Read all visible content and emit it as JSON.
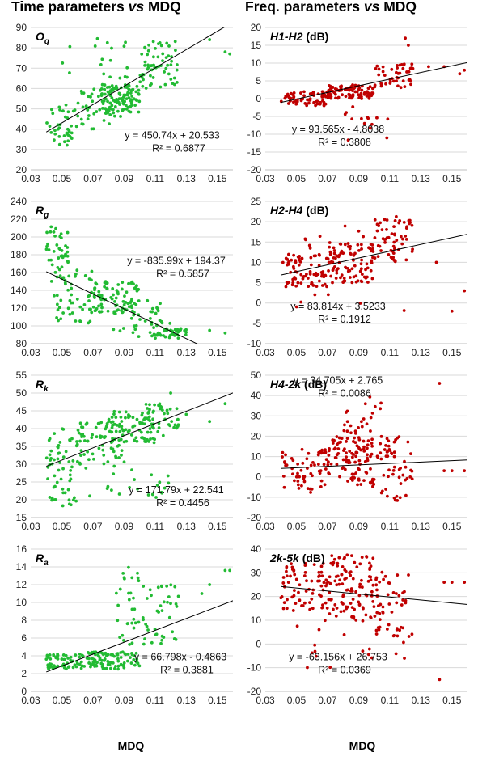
{
  "titles": {
    "left_prefix": "Time parameters ",
    "left_vs": "vs",
    "left_suffix": " MDQ",
    "right_prefix": "Freq. parameters ",
    "right_vs": "vs",
    "right_suffix": " MDQ"
  },
  "xlabels": {
    "left": "MDQ",
    "right": "MDQ"
  },
  "colors": {
    "green": "#22bb33",
    "red": "#c00000",
    "grid": "#d9d9d9",
    "axis": "#bfbfbf",
    "trend": "#000000"
  },
  "x_ticks": [
    "0.03",
    "0.05",
    "0.07",
    "0.09",
    "0.11",
    "0.13",
    "0.15"
  ],
  "chart_data": [
    {
      "type": "scatter",
      "label": "O",
      "sub": "q",
      "unit": "",
      "color": "green",
      "ylim": [
        20,
        90
      ],
      "yticks": [
        20,
        30,
        40,
        50,
        60,
        70,
        80,
        90
      ],
      "xlim": [
        0.03,
        0.16
      ],
      "trend": {
        "slope": 450.74,
        "intercept": 20.533
      },
      "equation": "y = 450.74x + 20.533",
      "r2": "R² = 0.6877",
      "clusters": [
        {
          "x": [
            0.04,
            0.06
          ],
          "y": [
            32,
            52
          ],
          "n": 40
        },
        {
          "x": [
            0.06,
            0.09
          ],
          "y": [
            40,
            60
          ],
          "n": 50
        },
        {
          "x": [
            0.075,
            0.1
          ],
          "y": [
            48,
            62
          ],
          "n": 90
        },
        {
          "x": [
            0.1,
            0.125
          ],
          "y": [
            60,
            84
          ],
          "n": 55
        },
        {
          "x": [
            0.05,
            0.12
          ],
          "y": [
            65,
            85
          ],
          "n": 25
        }
      ],
      "extra_points": [
        [
          0.145,
          84
        ],
        [
          0.155,
          78
        ],
        [
          0.158,
          77
        ]
      ]
    },
    {
      "type": "scatter",
      "label": "H1-H2",
      "sub": "",
      "unit": " (dB)",
      "color": "red",
      "ylim": [
        -20,
        20
      ],
      "yticks": [
        -20,
        -15,
        -10,
        -5,
        0,
        5,
        10,
        15,
        20
      ],
      "xlim": [
        0.03,
        0.16
      ],
      "trend": {
        "slope": 93.565,
        "intercept": -4.8038
      },
      "equation": "y = 93.565x - 4.8038",
      "r2": "R² = 0.3808",
      "clusters": [
        {
          "x": [
            0.04,
            0.07
          ],
          "y": [
            -2,
            2
          ],
          "n": 70
        },
        {
          "x": [
            0.07,
            0.1
          ],
          "y": [
            0,
            4
          ],
          "n": 90
        },
        {
          "x": [
            0.1,
            0.125
          ],
          "y": [
            3,
            10
          ],
          "n": 45
        },
        {
          "x": [
            0.08,
            0.11
          ],
          "y": [
            -12,
            -2
          ],
          "n": 15
        }
      ],
      "extra_points": [
        [
          0.12,
          17
        ],
        [
          0.122,
          15
        ],
        [
          0.135,
          9
        ],
        [
          0.145,
          9
        ],
        [
          0.155,
          7
        ],
        [
          0.158,
          8
        ]
      ]
    },
    {
      "type": "scatter",
      "label": "R",
      "sub": "g",
      "unit": "",
      "color": "green",
      "ylim": [
        80,
        240
      ],
      "yticks": [
        80,
        100,
        120,
        140,
        160,
        180,
        200,
        220,
        240
      ],
      "xlim": [
        0.03,
        0.16
      ],
      "trend": {
        "slope": -835.99,
        "intercept": 194.37
      },
      "equation": "y = -835.99x + 194.37",
      "r2": "R² = 0.5857",
      "clusters": [
        {
          "x": [
            0.04,
            0.055
          ],
          "y": [
            150,
            215
          ],
          "n": 40
        },
        {
          "x": [
            0.045,
            0.07
          ],
          "y": [
            100,
            165
          ],
          "n": 50
        },
        {
          "x": [
            0.07,
            0.1
          ],
          "y": [
            115,
            150
          ],
          "n": 90
        },
        {
          "x": [
            0.08,
            0.12
          ],
          "y": [
            88,
            130
          ],
          "n": 45
        },
        {
          "x": [
            0.11,
            0.13
          ],
          "y": [
            86,
            98
          ],
          "n": 35
        }
      ],
      "extra_points": [
        [
          0.145,
          95
        ],
        [
          0.155,
          92
        ]
      ]
    },
    {
      "type": "scatter",
      "label": "H2-H4",
      "sub": "",
      "unit": " (dB)",
      "color": "red",
      "ylim": [
        -10,
        25
      ],
      "yticks": [
        -10,
        -5,
        0,
        5,
        10,
        15,
        20,
        25
      ],
      "xlim": [
        0.03,
        0.16
      ],
      "trend": {
        "slope": 83.814,
        "intercept": 3.5233
      },
      "equation": "y = 83.814x + 3.5233",
      "r2": "R² = 0.1912",
      "clusters": [
        {
          "x": [
            0.04,
            0.07
          ],
          "y": [
            4,
            12
          ],
          "n": 70
        },
        {
          "x": [
            0.07,
            0.1
          ],
          "y": [
            5,
            15
          ],
          "n": 90
        },
        {
          "x": [
            0.1,
            0.125
          ],
          "y": [
            10,
            22
          ],
          "n": 55
        },
        {
          "x": [
            0.05,
            0.12
          ],
          "y": [
            -4,
            19
          ],
          "n": 30
        }
      ],
      "extra_points": [
        [
          0.14,
          10
        ],
        [
          0.15,
          -2
        ],
        [
          0.158,
          3
        ]
      ]
    },
    {
      "type": "scatter",
      "label": "R",
      "sub": "k",
      "unit": "",
      "color": "green",
      "ylim": [
        15,
        55
      ],
      "yticks": [
        15,
        20,
        25,
        30,
        35,
        40,
        45,
        50,
        55
      ],
      "xlim": [
        0.03,
        0.16
      ],
      "trend": {
        "slope": 171.79,
        "intercept": 22.541
      },
      "equation": "y = 171.79x + 22.541",
      "r2": "R² = 0.4456",
      "clusters": [
        {
          "x": [
            0.04,
            0.06
          ],
          "y": [
            18,
            40
          ],
          "n": 60
        },
        {
          "x": [
            0.06,
            0.09
          ],
          "y": [
            30,
            42
          ],
          "n": 70
        },
        {
          "x": [
            0.08,
            0.11
          ],
          "y": [
            36,
            45
          ],
          "n": 70
        },
        {
          "x": [
            0.1,
            0.125
          ],
          "y": [
            38,
            47
          ],
          "n": 40
        },
        {
          "x": [
            0.06,
            0.12
          ],
          "y": [
            20,
            32
          ],
          "n": 25
        }
      ],
      "extra_points": [
        [
          0.12,
          50
        ],
        [
          0.13,
          44
        ],
        [
          0.145,
          42
        ],
        [
          0.155,
          47
        ]
      ]
    },
    {
      "type": "scatter",
      "label": "H4-2k",
      "sub": "",
      "unit": " (dB)",
      "color": "red",
      "ylim": [
        -20,
        50
      ],
      "yticks": [
        -20,
        -10,
        0,
        10,
        20,
        30,
        40,
        50
      ],
      "xlim": [
        0.03,
        0.16
      ],
      "trend": {
        "slope": 34.705,
        "intercept": 2.765
      },
      "equation": "y = 34.705x + 2.765",
      "r2": "R² = 0.0086",
      "clusters": [
        {
          "x": [
            0.04,
            0.07
          ],
          "y": [
            -8,
            14
          ],
          "n": 60
        },
        {
          "x": [
            0.07,
            0.1
          ],
          "y": [
            -5,
            20
          ],
          "n": 100
        },
        {
          "x": [
            0.08,
            0.11
          ],
          "y": [
            10,
            40
          ],
          "n": 35
        },
        {
          "x": [
            0.1,
            0.125
          ],
          "y": [
            -12,
            20
          ],
          "n": 50
        }
      ],
      "extra_points": [
        [
          0.142,
          46
        ],
        [
          0.145,
          3
        ],
        [
          0.15,
          3
        ],
        [
          0.158,
          3
        ]
      ]
    },
    {
      "type": "scatter",
      "label": "R",
      "sub": "a",
      "unit": "",
      "color": "green",
      "ylim": [
        0,
        16
      ],
      "yticks": [
        0,
        2,
        4,
        6,
        8,
        10,
        12,
        14,
        16
      ],
      "xlim": [
        0.03,
        0.16
      ],
      "trend": {
        "slope": 66.798,
        "intercept": -0.4863
      },
      "equation": "y = 66.798x - 0.4863",
      "r2": "R² = 0.3881",
      "clusters": [
        {
          "x": [
            0.04,
            0.065
          ],
          "y": [
            2.5,
            4.2
          ],
          "n": 60
        },
        {
          "x": [
            0.065,
            0.1
          ],
          "y": [
            2.5,
            4.5
          ],
          "n": 90
        },
        {
          "x": [
            0.085,
            0.1
          ],
          "y": [
            5,
            14
          ],
          "n": 30
        },
        {
          "x": [
            0.1,
            0.125
          ],
          "y": [
            5,
            12
          ],
          "n": 40
        }
      ],
      "extra_points": [
        [
          0.14,
          11
        ],
        [
          0.145,
          12
        ],
        [
          0.155,
          13.6
        ],
        [
          0.158,
          13.6
        ]
      ]
    },
    {
      "type": "scatter",
      "label": "2k-5k",
      "sub": "",
      "unit": " (dB)",
      "color": "red",
      "ylim": [
        -20,
        40
      ],
      "yticks": [
        -20,
        -10,
        0,
        10,
        20,
        30,
        40
      ],
      "xlim": [
        0.03,
        0.16
      ],
      "trend": {
        "slope": -63.156,
        "intercept": 26.753
      },
      "equation": "y = -63.156x + 26.753",
      "r2": "R² = 0.0369",
      "clusters": [
        {
          "x": [
            0.04,
            0.07
          ],
          "y": [
            14,
            34
          ],
          "n": 70
        },
        {
          "x": [
            0.07,
            0.1
          ],
          "y": [
            10,
            38
          ],
          "n": 100
        },
        {
          "x": [
            0.1,
            0.125
          ],
          "y": [
            0,
            32
          ],
          "n": 50
        },
        {
          "x": [
            0.05,
            0.12
          ],
          "y": [
            -10,
            10
          ],
          "n": 20
        }
      ],
      "extra_points": [
        [
          0.142,
          -15
        ],
        [
          0.145,
          26
        ],
        [
          0.15,
          26
        ],
        [
          0.158,
          26
        ]
      ]
    }
  ]
}
